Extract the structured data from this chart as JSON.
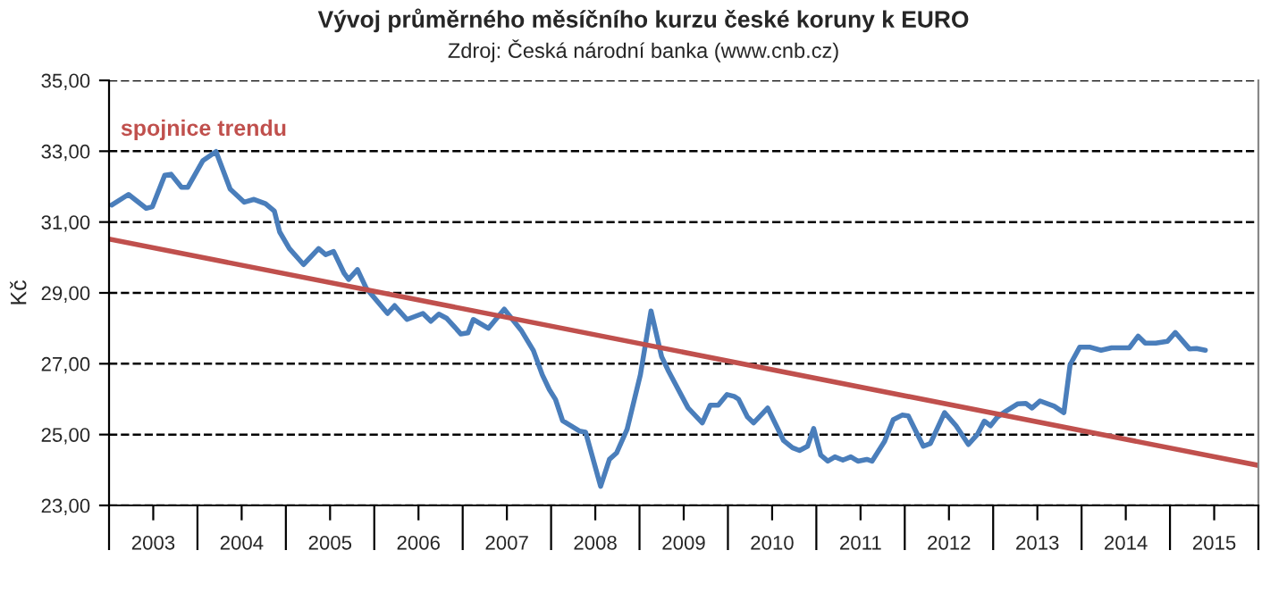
{
  "chart_data": {
    "type": "line",
    "title": "Vývoj průměrného měsíčního kurzu české koruny k EURO",
    "subtitle": "Zdroj: Česká národní banka (www.cnb.cz)",
    "ylabel": "Kč",
    "series": [
      {
        "color": "#4a7ebb",
        "x": [
          2002.53,
          2002.72,
          2002.92,
          2002.99,
          2003.13,
          2003.2,
          2003.32,
          2003.39,
          2003.56,
          2003.71,
          2003.87,
          2004.03,
          2004.14,
          2004.27,
          2004.37,
          2004.43,
          2004.54,
          2004.7,
          2004.87,
          2004.95,
          2005.04,
          2005.16,
          2005.21,
          2005.31,
          2005.41,
          2005.65,
          2005.73,
          2005.87,
          2006.05,
          2006.14,
          2006.23,
          2006.32,
          2006.48,
          2006.56,
          2006.62,
          2006.79,
          2006.97,
          2007.16,
          2007.3,
          2007.4,
          2007.48,
          2007.55,
          2007.63,
          2007.82,
          2007.89,
          2008.06,
          2008.16,
          2008.24,
          2008.36,
          2008.51,
          2008.63,
          2008.75,
          2008.83,
          2009.05,
          2009.21,
          2009.3,
          2009.39,
          2009.49,
          2009.57,
          2009.62,
          2009.72,
          2009.79,
          2009.95,
          2010.13,
          2010.23,
          2010.31,
          2010.4,
          2010.47,
          2010.55,
          2010.63,
          2010.71,
          2010.8,
          2010.89,
          2010.97,
          2011.07,
          2011.13,
          2011.27,
          2011.37,
          2011.47,
          2011.54,
          2011.71,
          2011.79,
          2011.95,
          2012.08,
          2012.22,
          2012.32,
          2012.4,
          2012.47,
          2012.55,
          2012.65,
          2012.78,
          2012.87,
          2012.94,
          2013.03,
          2013.19,
          2013.3,
          2013.37,
          2013.48,
          2013.59,
          2013.72,
          2013.84,
          2014.04,
          2014.14,
          2014.22,
          2014.34,
          2014.47,
          2014.56,
          2014.72,
          2014.8,
          2014.9
        ],
        "values": [
          31.48,
          31.78,
          31.39,
          31.43,
          32.32,
          32.35,
          31.98,
          31.98,
          32.73,
          32.99,
          31.93,
          31.56,
          31.64,
          31.52,
          31.31,
          30.72,
          30.25,
          29.8,
          30.25,
          30.08,
          30.17,
          29.55,
          29.38,
          29.66,
          29.13,
          28.42,
          28.64,
          28.25,
          28.42,
          28.2,
          28.4,
          28.28,
          27.84,
          27.87,
          28.25,
          28.0,
          28.54,
          27.95,
          27.37,
          26.69,
          26.27,
          25.99,
          25.39,
          25.1,
          25.07,
          23.54,
          24.3,
          24.48,
          25.15,
          26.69,
          28.49,
          27.2,
          26.78,
          25.75,
          25.33,
          25.83,
          25.83,
          26.13,
          26.08,
          26.0,
          25.5,
          25.33,
          25.75,
          24.83,
          24.63,
          24.55,
          24.67,
          25.17,
          24.42,
          24.25,
          24.37,
          24.28,
          24.37,
          24.25,
          24.3,
          24.25,
          24.8,
          25.42,
          25.55,
          25.53,
          24.67,
          24.75,
          25.62,
          25.25,
          24.72,
          25.0,
          25.38,
          25.25,
          25.5,
          25.67,
          25.87,
          25.88,
          25.75,
          25.95,
          25.8,
          25.62,
          26.97,
          27.47,
          27.47,
          27.38,
          27.45,
          27.45,
          27.78,
          27.58,
          27.58,
          27.63,
          27.88,
          27.42,
          27.43,
          27.38
        ]
      },
      {
        "name": "spojnice trendu",
        "color": "#c0504d",
        "x": [
          2002.5,
          2015.5
        ],
        "values": [
          30.52,
          24.13
        ]
      }
    ],
    "xlim": [
      2002.5,
      2015.5
    ],
    "xticks": [
      2003,
      2004,
      2005,
      2006,
      2007,
      2008,
      2009,
      2010,
      2011,
      2012,
      2013,
      2014,
      2015
    ],
    "ylim": [
      23,
      35
    ],
    "yticks": [
      {
        "value": 23,
        "label": "23,00"
      },
      {
        "value": 25,
        "label": "25,00"
      },
      {
        "value": 27,
        "label": "27,00"
      },
      {
        "value": 29,
        "label": "29,00"
      },
      {
        "value": 31,
        "label": "31,00"
      },
      {
        "value": 33,
        "label": "33,00"
      },
      {
        "value": 35,
        "label": "35,00"
      }
    ],
    "grid": "y",
    "legend": false,
    "marker": "none",
    "line_style": "solid"
  }
}
